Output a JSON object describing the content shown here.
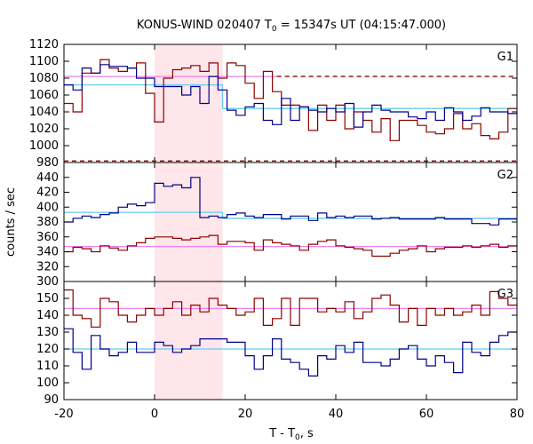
{
  "chart_data": {
    "type": "line",
    "title": "KONUS-WIND 020407 T",
    "title_sub": "0",
    "title_rest": " = 15347s UT (04:15:47.000)",
    "xlabel": "T - T",
    "xlabel_sub": "0",
    "xlabel_rest": ", s",
    "ylabel": "counts / sec",
    "xlim": [
      -20,
      80
    ],
    "x_ticks": [
      "-20",
      "0",
      "20",
      "40",
      "60",
      "80"
    ],
    "shaded_interval": [
      0,
      15
    ],
    "colors": {
      "counts_red": "#8b0000",
      "counts_blue": "#00008b",
      "bg_red": "#ee82ee",
      "bg_blue": "#66ccee",
      "shade": "#ffe6ea"
    },
    "bin_edges": [
      -20,
      -18,
      -16,
      -14,
      -12,
      -10,
      -8,
      -6,
      -4,
      -2,
      0,
      2,
      4,
      6,
      8,
      10,
      12,
      14,
      16,
      18,
      20,
      22,
      24,
      26,
      28,
      30,
      32,
      34,
      36,
      38,
      40,
      42,
      44,
      46,
      48,
      50,
      52,
      54,
      56,
      58,
      60,
      62,
      64,
      66,
      68,
      70,
      72,
      74,
      76,
      78,
      80
    ],
    "panels": [
      {
        "name": "G1",
        "ylim": [
          980,
          1120
        ],
        "y_ticks": [
          "980",
          "1000",
          "1020",
          "1040",
          "1060",
          "1080",
          "1100",
          "1120"
        ],
        "series": [
          {
            "color": "#8b0000",
            "values": [
              1050,
              1040,
              1086,
              1086,
              1102,
              1092,
              1088,
              1092,
              1098,
              1062,
              1028,
              1080,
              1090,
              1092,
              1095,
              1088,
              1098,
              1080,
              1098,
              1095,
              1074,
              1056,
              1088,
              1064,
              1048,
              1048,
              1046,
              1018,
              1048,
              1030,
              1048,
              1020,
              1040,
              1030,
              1016,
              1032,
              1006,
              1030,
              1030,
              1024,
              1016,
              1014,
              1020,
              1038,
              1020,
              1026,
              1012,
              1008,
              1016,
              1044
            ]
          },
          {
            "color": "#00008b",
            "values": [
              1072,
              1066,
              1092,
              1086,
              1096,
              1094,
              1094,
              1092,
              1080,
              1080,
              1070,
              1070,
              1070,
              1060,
              1070,
              1050,
              1082,
              1066,
              1042,
              1036,
              1046,
              1050,
              1030,
              1025,
              1056,
              1030,
              1046,
              1042,
              1040,
              1044,
              1040,
              1050,
              1022,
              1040,
              1048,
              1042,
              1040,
              1040,
              1034,
              1032,
              1040,
              1030,
              1045,
              1040,
              1030,
              1035,
              1045,
              1040,
              1040,
              1038
            ]
          }
        ],
        "background": [
          {
            "color": "#66ccee",
            "x": [
              -20,
              0,
              15,
              80
            ],
            "y": [
              1072,
              1072,
              1044,
              1044
            ]
          },
          {
            "color": "#ee82ee",
            "x": [
              -20,
              27
            ],
            "y": [
              1082,
              1082
            ]
          }
        ],
        "dashed": {
          "color": "#8b0000",
          "x": [
            27,
            80
          ],
          "y": 1082
        }
      },
      {
        "name": "G2",
        "ylim": [
          300,
          460
        ],
        "y_ticks": [
          "300",
          "320",
          "340",
          "360",
          "380",
          "400",
          "420",
          "440"
        ],
        "series": [
          {
            "color": "#00008b",
            "values": [
              380,
              385,
              388,
              386,
              390,
              392,
              400,
              404,
              402,
              406,
              432,
              428,
              430,
              426,
              440,
              386,
              388,
              386,
              390,
              392,
              388,
              386,
              390,
              390,
              384,
              388,
              388,
              382,
              392,
              386,
              388,
              386,
              388,
              388,
              384,
              385,
              386,
              384,
              384,
              384,
              384,
              386,
              384,
              384,
              384,
              378,
              378,
              376,
              384,
              384
            ]
          },
          {
            "color": "#8b0000",
            "values": [
              340,
              346,
              344,
              340,
              348,
              345,
              342,
              348,
              352,
              358,
              360,
              360,
              358,
              356,
              358,
              360,
              362,
              350,
              354,
              354,
              352,
              342,
              356,
              352,
              350,
              348,
              342,
              350,
              354,
              356,
              348,
              346,
              344,
              342,
              334,
              334,
              338,
              342,
              344,
              348,
              340,
              344,
              346,
              346,
              348,
              346,
              348,
              350,
              346,
              348
            ]
          }
        ],
        "background": [
          {
            "color": "#66ccee",
            "x": [
              -20,
              0,
              15,
              80
            ],
            "y": [
              393,
              393,
              385,
              385
            ]
          },
          {
            "color": "#ee82ee",
            "x": [
              -20,
              80
            ],
            "y": [
              347,
              347
            ]
          }
        ],
        "dashed": {
          "color": "#8b0000",
          "x": [
            -20,
            80
          ],
          "y": 462
        }
      },
      {
        "name": "G3",
        "ylim": [
          90,
          160
        ],
        "y_ticks": [
          "90",
          "100",
          "110",
          "120",
          "130",
          "140",
          "150"
        ],
        "series": [
          {
            "color": "#8b0000",
            "values": [
              155,
              140,
              138,
              133,
              150,
              148,
              140,
              136,
              140,
              144,
              140,
              144,
              148,
              140,
              146,
              142,
              150,
              146,
              144,
              140,
              142,
              150,
              134,
              138,
              150,
              134,
              150,
              150,
              142,
              144,
              142,
              148,
              138,
              142,
              150,
              152,
              146,
              136,
              144,
              134,
              144,
              140,
              144,
              140,
              142,
              146,
              140,
              154,
              150,
              146
            ]
          },
          {
            "color": "#00008b",
            "values": [
              132,
              118,
              108,
              128,
              120,
              116,
              118,
              124,
              118,
              118,
              124,
              122,
              118,
              120,
              122,
              126,
              126,
              126,
              124,
              124,
              116,
              108,
              116,
              126,
              114,
              112,
              108,
              104,
              116,
              114,
              122,
              118,
              124,
              112,
              112,
              110,
              114,
              120,
              122,
              114,
              110,
              116,
              112,
              106,
              124,
              118,
              116,
              124,
              128,
              130
            ]
          }
        ],
        "background": [
          {
            "color": "#66ccee",
            "x": [
              -20,
              80
            ],
            "y": [
              120,
              120
            ]
          },
          {
            "color": "#ee82ee",
            "x": [
              -20,
              80
            ],
            "y": [
              144,
              144
            ]
          }
        ]
      }
    ]
  }
}
